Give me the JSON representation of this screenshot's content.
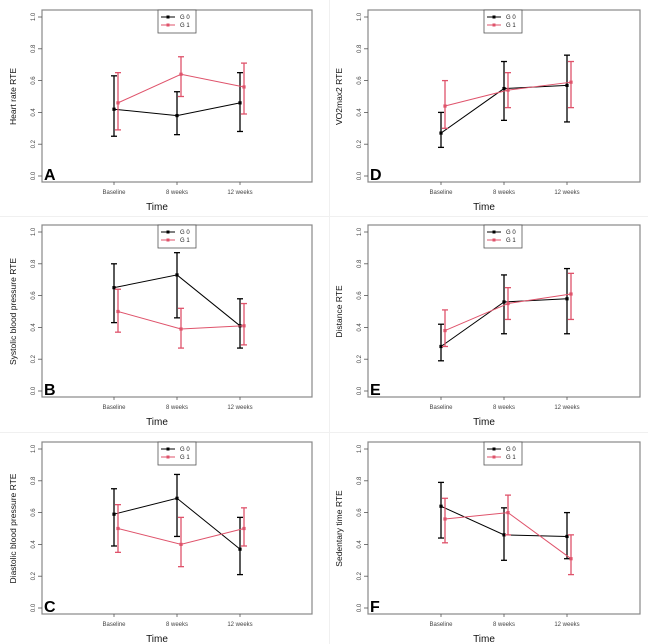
{
  "figure": {
    "colors": {
      "G0": "#000000",
      "G1": "#DF536B",
      "frame": "#888888"
    }
  },
  "chart_data": [
    {
      "type": "line",
      "panel": "A",
      "title": "",
      "xlabel": "Time",
      "ylabel": "Heart rate RTE",
      "categories": [
        "Baseline",
        "8 weeks",
        "12 weeks"
      ],
      "ylim": [
        0.0,
        1.0
      ],
      "yticks": [
        "0.0",
        "0.2",
        "0.4",
        "0.6",
        "0.8",
        "1.0"
      ],
      "legend": {
        "placement": "top-center",
        "entries": [
          "G 0",
          "G 1"
        ]
      },
      "grid": false,
      "series": [
        {
          "name": "G 0",
          "values": [
            0.42,
            0.38,
            0.46
          ],
          "lower": [
            0.25,
            0.26,
            0.28
          ],
          "upper": [
            0.63,
            0.53,
            0.65
          ]
        },
        {
          "name": "G 1",
          "values": [
            0.46,
            0.64,
            0.56
          ],
          "lower": [
            0.29,
            0.5,
            0.39
          ],
          "upper": [
            0.65,
            0.75,
            0.71
          ]
        }
      ]
    },
    {
      "type": "line",
      "panel": "B",
      "title": "",
      "xlabel": "Time",
      "ylabel": "Systolic blood pressure RTE",
      "categories": [
        "Baseline",
        "8 weeks",
        "12 weeks"
      ],
      "ylim": [
        0.0,
        1.0
      ],
      "yticks": [
        "0.0",
        "0.2",
        "0.4",
        "0.6",
        "0.8",
        "1.0"
      ],
      "legend": {
        "placement": "top-center",
        "entries": [
          "G 0",
          "G 1"
        ]
      },
      "grid": false,
      "series": [
        {
          "name": "G 0",
          "values": [
            0.65,
            0.73,
            0.41
          ],
          "lower": [
            0.43,
            0.46,
            0.27
          ],
          "upper": [
            0.8,
            0.87,
            0.58
          ]
        },
        {
          "name": "G 1",
          "values": [
            0.5,
            0.39,
            0.41
          ],
          "lower": [
            0.37,
            0.27,
            0.29
          ],
          "upper": [
            0.64,
            0.52,
            0.55
          ]
        }
      ]
    },
    {
      "type": "line",
      "panel": "C",
      "title": "",
      "xlabel": "Time",
      "ylabel": "Diastolic blood pressure RTE",
      "categories": [
        "Baseline",
        "8 weeks",
        "12 weeks"
      ],
      "ylim": [
        0.0,
        1.0
      ],
      "yticks": [
        "0.0",
        "0.2",
        "0.4",
        "0.6",
        "0.8",
        "1.0"
      ],
      "legend": {
        "placement": "top-center",
        "entries": [
          "G 0",
          "G 1"
        ]
      },
      "grid": false,
      "series": [
        {
          "name": "G 0",
          "values": [
            0.59,
            0.69,
            0.37
          ],
          "lower": [
            0.39,
            0.45,
            0.21
          ],
          "upper": [
            0.75,
            0.84,
            0.57
          ]
        },
        {
          "name": "G 1",
          "values": [
            0.5,
            0.4,
            0.5
          ],
          "lower": [
            0.35,
            0.26,
            0.39
          ],
          "upper": [
            0.65,
            0.57,
            0.63
          ]
        }
      ]
    },
    {
      "type": "line",
      "panel": "D",
      "title": "",
      "xlabel": "Time",
      "ylabel": "VO2max2 RTE",
      "categories": [
        "Baseline",
        "8 weeks",
        "12 weeks"
      ],
      "ylim": [
        0.0,
        1.0
      ],
      "yticks": [
        "0.0",
        "0.2",
        "0.4",
        "0.6",
        "0.8",
        "1.0"
      ],
      "legend": {
        "placement": "top-center",
        "entries": [
          "G 0",
          "G 1"
        ]
      },
      "grid": false,
      "series": [
        {
          "name": "G 0",
          "values": [
            0.27,
            0.55,
            0.57
          ],
          "lower": [
            0.18,
            0.35,
            0.34
          ],
          "upper": [
            0.4,
            0.72,
            0.76
          ]
        },
        {
          "name": "G 1",
          "values": [
            0.44,
            0.54,
            0.59
          ],
          "lower": [
            0.3,
            0.43,
            0.43
          ],
          "upper": [
            0.6,
            0.65,
            0.72
          ]
        }
      ]
    },
    {
      "type": "line",
      "panel": "E",
      "title": "",
      "xlabel": "Time",
      "ylabel": "Distance RTE",
      "categories": [
        "Baseline",
        "8 weeks",
        "12 weeks"
      ],
      "ylim": [
        0.0,
        1.0
      ],
      "yticks": [
        "0.0",
        "0.2",
        "0.4",
        "0.6",
        "0.8",
        "1.0"
      ],
      "legend": {
        "placement": "top-center",
        "entries": [
          "G 0",
          "G 1"
        ]
      },
      "grid": false,
      "series": [
        {
          "name": "G 0",
          "values": [
            0.28,
            0.56,
            0.58
          ],
          "lower": [
            0.19,
            0.36,
            0.36
          ],
          "upper": [
            0.42,
            0.73,
            0.77
          ]
        },
        {
          "name": "G 1",
          "values": [
            0.38,
            0.55,
            0.61
          ],
          "lower": [
            0.28,
            0.45,
            0.45
          ],
          "upper": [
            0.51,
            0.65,
            0.74
          ]
        }
      ]
    },
    {
      "type": "line",
      "panel": "F",
      "title": "",
      "xlabel": "Time",
      "ylabel": "Sedentary time RTE",
      "categories": [
        "Baseline",
        "8 weeks",
        "12 weeks"
      ],
      "ylim": [
        0.0,
        1.0
      ],
      "yticks": [
        "0.0",
        "0.2",
        "0.4",
        "0.6",
        "0.8",
        "1.0"
      ],
      "legend": {
        "placement": "top-center",
        "entries": [
          "G 0",
          "G 1"
        ]
      },
      "grid": false,
      "series": [
        {
          "name": "G 0",
          "values": [
            0.64,
            0.46,
            0.45
          ],
          "lower": [
            0.44,
            0.3,
            0.31
          ],
          "upper": [
            0.79,
            0.63,
            0.6
          ]
        },
        {
          "name": "G 1",
          "values": [
            0.56,
            0.6,
            0.31
          ],
          "lower": [
            0.41,
            0.46,
            0.21
          ],
          "upper": [
            0.69,
            0.71,
            0.46
          ]
        }
      ]
    }
  ]
}
